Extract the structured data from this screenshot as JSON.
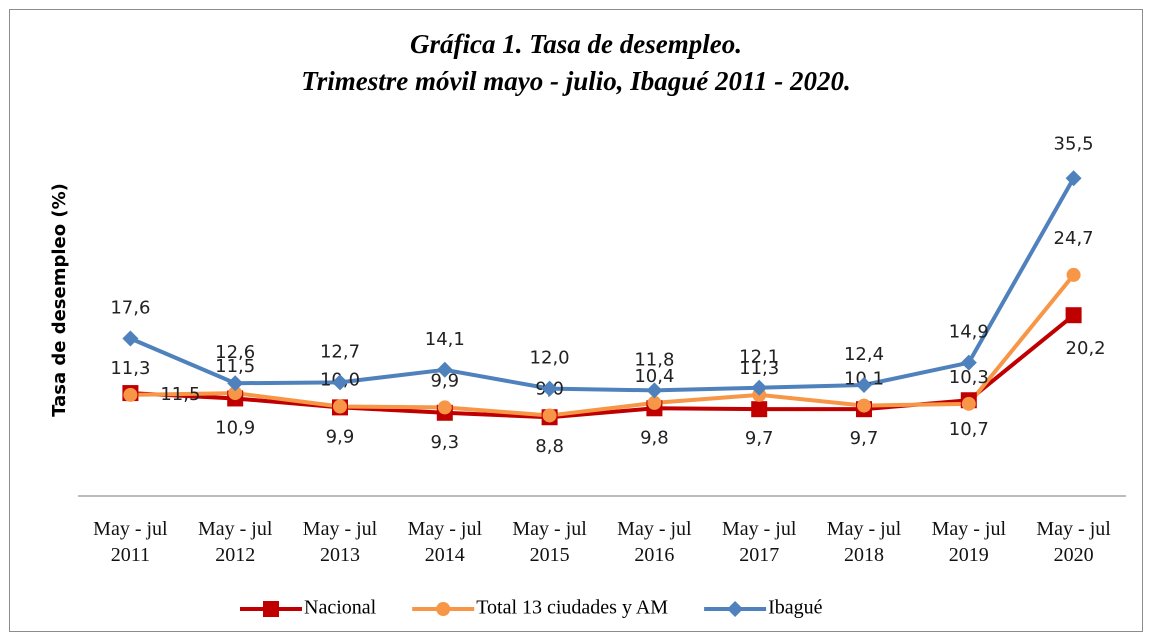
{
  "chart_data": {
    "type": "line",
    "title": "Gráfica 1. Tasa de desempleo.",
    "subtitle": "Trimestre móvil  mayo - julio, Ibagué 2011 - 2020.",
    "y_label": "Tasa de desempleo (%)",
    "categories": [
      "May - jul 2011",
      "May - jul 2012",
      "May - jul 2013",
      "May - jul 2014",
      "May - jul 2015",
      "May - jul 2016",
      "May - jul 2017",
      "May - jul 2018",
      "May - jul 2019",
      "May - jul 2020"
    ],
    "ylim": [
      0,
      40
    ],
    "series": [
      {
        "name": "Nacional",
        "color": "#c00000",
        "marker": "square",
        "values": [
          11.5,
          10.9,
          9.9,
          9.3,
          8.8,
          9.8,
          9.7,
          9.7,
          10.7,
          20.2
        ],
        "value_labels": [
          "11,5",
          "10,9",
          "9,9",
          "9,3",
          "8,8",
          "9,8",
          "9,7",
          "9,7",
          "10,7",
          "20,2"
        ]
      },
      {
        "name": "Total 13 ciudades y AM",
        "color": "#f79646",
        "marker": "circle",
        "values": [
          11.3,
          11.5,
          10.0,
          9.9,
          9.0,
          10.4,
          11.3,
          10.1,
          10.3,
          24.7
        ],
        "value_labels": [
          "11,3",
          "11,5",
          "10,0",
          "9,9",
          "9,0",
          "10,4",
          "11,3",
          "10,1",
          "10,3",
          "24,7"
        ]
      },
      {
        "name": "Ibagué",
        "color": "#4f81bd",
        "marker": "diamond",
        "values": [
          17.6,
          12.6,
          12.7,
          14.1,
          12.0,
          11.8,
          12.1,
          12.4,
          14.9,
          35.5
        ],
        "value_labels": [
          "17,6",
          "12,6",
          "12,7",
          "14,1",
          "12,0",
          "11,8",
          "12,1",
          "12,4",
          "14,9",
          "35,5"
        ]
      }
    ]
  }
}
